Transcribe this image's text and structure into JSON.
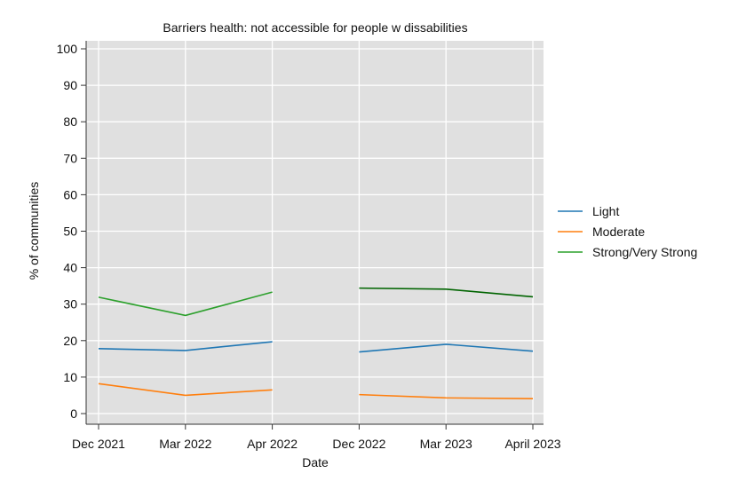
{
  "chart_data": {
    "type": "line",
    "title": "Barriers health: not accessible for people w dissabilities",
    "xlabel": "Date",
    "ylabel": "% of communities",
    "ylim": [
      0,
      100
    ],
    "yticks": [
      0,
      10,
      20,
      30,
      40,
      50,
      60,
      70,
      80,
      90,
      100
    ],
    "categories": [
      "Dec 2021",
      "Mar 2022",
      "Apr 2022",
      "Dec 2022",
      "Mar 2023",
      "April 2023"
    ],
    "grid": true,
    "legend_position": "right",
    "series": [
      {
        "name": "Light",
        "color": "#1f77b4",
        "values": [
          17.8,
          17.3,
          19.7,
          16.9,
          19.0,
          17.1
        ]
      },
      {
        "name": "Moderate",
        "color": "#ff7f0e",
        "values": [
          8.2,
          5.0,
          6.5,
          5.2,
          4.3,
          4.1
        ]
      },
      {
        "name": "Strong/Very Strong",
        "color": "#2ca02c",
        "segment_colors": [
          "#2ca02c",
          "#006400"
        ],
        "values": [
          31.9,
          26.9,
          33.3,
          34.4,
          34.1,
          32.0
        ]
      }
    ],
    "segments": [
      [
        0,
        2
      ],
      [
        3,
        5
      ]
    ]
  }
}
